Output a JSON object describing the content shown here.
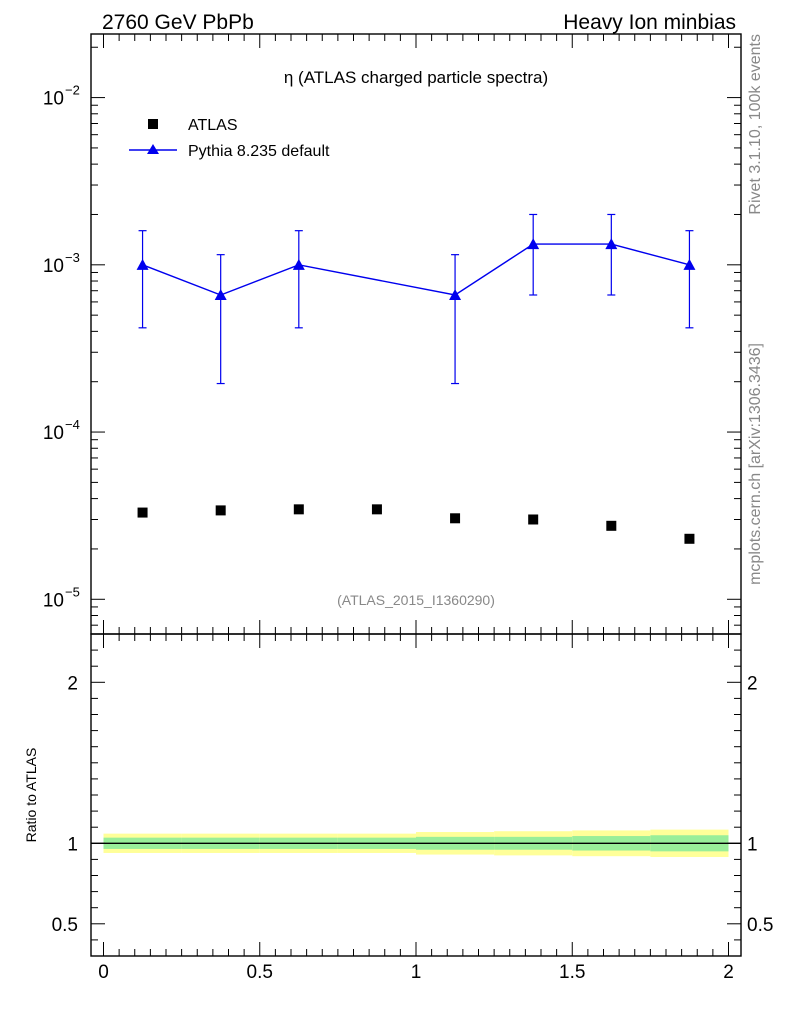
{
  "header": {
    "left": "2760 GeV PbPb",
    "right": "Heavy Ion minbias"
  },
  "side": {
    "rivet": "Rivet 3.1.10,  100k events",
    "mcplots": "mcplots.cern.ch [arXiv:1306.3436]"
  },
  "chart_data": {
    "type": "scatter",
    "title": "η (ATLAS charged particle spectra)",
    "watermark": "(ATLAS_2015_I1360290)",
    "xlim": [
      -0.04,
      2.04
    ],
    "ylim": [
      6.2e-06,
      0.024
    ],
    "yscale": "log",
    "y_ticks": [
      {
        "value": 1e-05,
        "mantissa": "10",
        "exp": "−5"
      },
      {
        "value": 0.0001,
        "mantissa": "10",
        "exp": "−4"
      },
      {
        "value": 0.001,
        "mantissa": "10",
        "exp": "−3"
      },
      {
        "value": 0.01,
        "mantissa": "10",
        "exp": "−2"
      }
    ],
    "x_ticks": [
      "0",
      "0.5",
      "1",
      "1.5",
      "2"
    ],
    "x_tick_values": [
      0,
      0.5,
      1,
      1.5,
      2
    ],
    "legend": [
      {
        "name": "ATLAS",
        "marker": "square",
        "color": "#000000"
      },
      {
        "name": "Pythia 8.235 default",
        "marker": "triangle",
        "color": "#0000ee"
      }
    ],
    "series": [
      {
        "name": "ATLAS",
        "color": "#000000",
        "x": [
          0.125,
          0.375,
          0.625,
          0.875,
          1.125,
          1.375,
          1.625,
          1.875
        ],
        "y": [
          3.3e-05,
          3.4e-05,
          3.45e-05,
          3.45e-05,
          3.05e-05,
          3e-05,
          2.75e-05,
          2.3e-05
        ]
      },
      {
        "name": "Pythia 8.235 default",
        "color": "#0000ee",
        "x": [
          0.125,
          0.375,
          0.625,
          1.125,
          1.375,
          1.625,
          1.875
        ],
        "y": [
          0.001,
          0.00066,
          0.001,
          0.00066,
          0.00133,
          0.00133,
          0.001
        ],
        "y_low": [
          0.00042,
          0.000195,
          0.00042,
          0.000195,
          0.00066,
          0.00066,
          0.00042
        ],
        "y_high": [
          0.0016,
          0.00115,
          0.0016,
          0.00115,
          0.002,
          0.002,
          0.0016
        ]
      }
    ],
    "ratio": {
      "ylabel": "Ratio to ATLAS",
      "ylim": [
        0.3,
        2.3
      ],
      "y_ticks": [
        "0.5",
        "1",
        "2"
      ],
      "y_tick_values": [
        0.5,
        1,
        2
      ],
      "band_edges": [
        0,
        0.25,
        0.5,
        0.75,
        1.0,
        1.25,
        1.5,
        1.75,
        2.0
      ],
      "stat_band": [
        [
          0.965,
          1.035
        ],
        [
          0.965,
          1.035
        ],
        [
          0.965,
          1.035
        ],
        [
          0.965,
          1.035
        ],
        [
          0.96,
          1.04
        ],
        [
          0.96,
          1.04
        ],
        [
          0.955,
          1.045
        ],
        [
          0.95,
          1.05
        ]
      ],
      "total_band": [
        [
          0.94,
          1.06
        ],
        [
          0.94,
          1.06
        ],
        [
          0.94,
          1.06
        ],
        [
          0.94,
          1.06
        ],
        [
          0.93,
          1.07
        ],
        [
          0.925,
          1.075
        ],
        [
          0.92,
          1.08
        ],
        [
          0.915,
          1.085
        ]
      ]
    }
  }
}
